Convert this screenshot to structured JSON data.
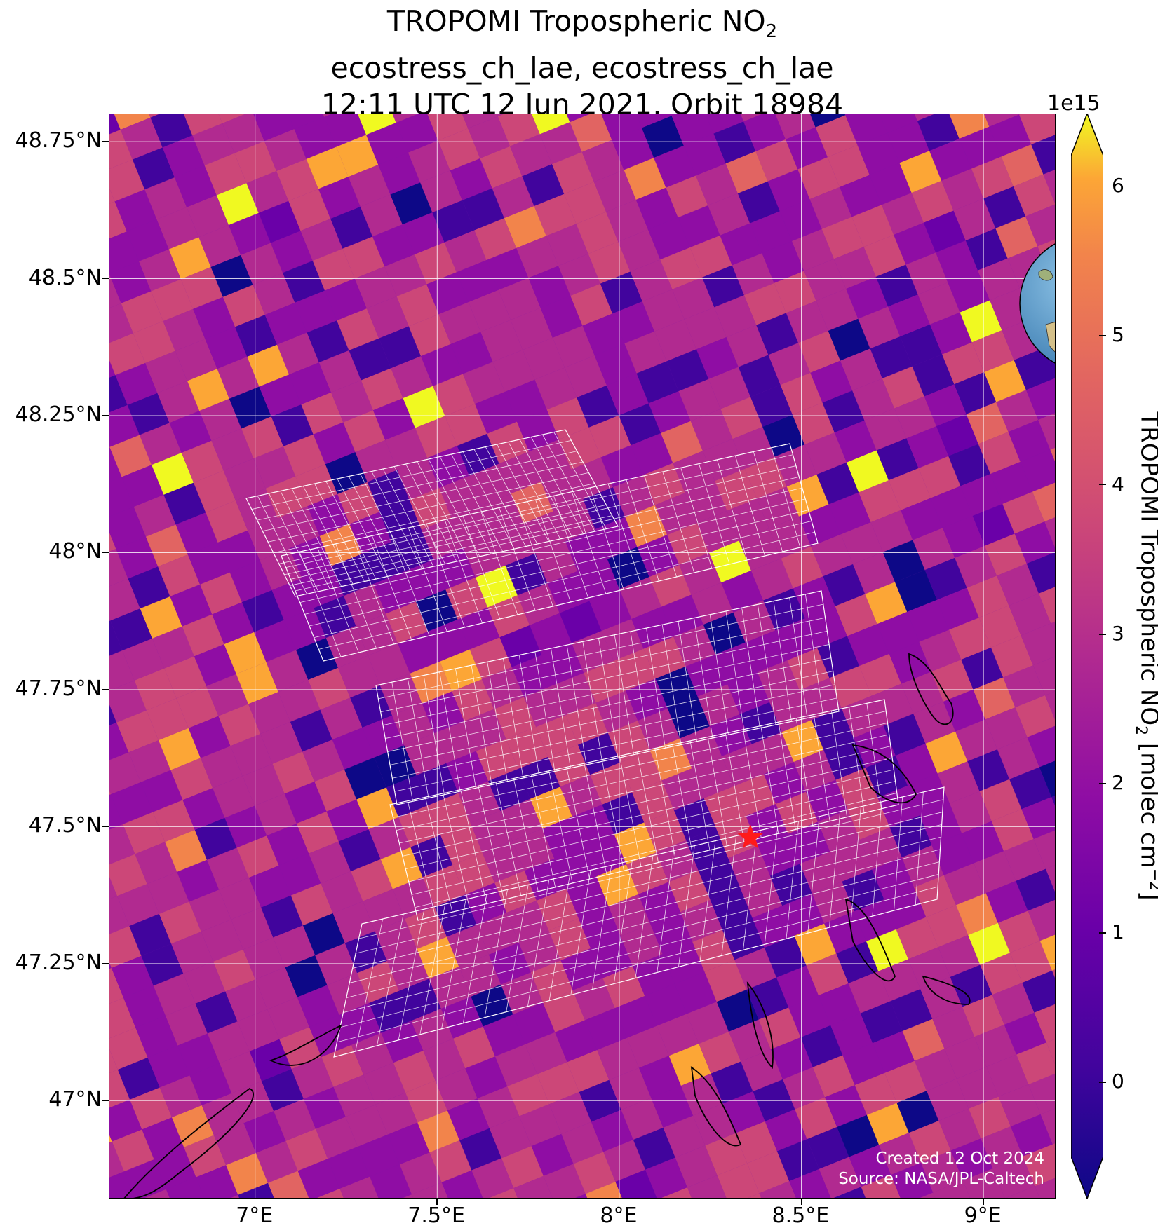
{
  "title": {
    "line1_prefix": "TROPOMI Tropospheric NO",
    "line1_sub": "2",
    "line2": "ecostress_ch_lae, ecostress_ch_lae",
    "line3": "12:11 UTC 12 Jun 2021, Orbit 18984"
  },
  "map": {
    "lon_range": [
      6.6,
      9.2
    ],
    "lat_range": [
      46.82,
      48.8
    ],
    "lat_ticks": [
      {
        "value": 48.75,
        "label": "48.75°N"
      },
      {
        "value": 48.5,
        "label": "48.5°N"
      },
      {
        "value": 48.25,
        "label": "48.25°N"
      },
      {
        "value": 48.0,
        "label": "48°N"
      },
      {
        "value": 47.75,
        "label": "47.75°N"
      },
      {
        "value": 47.5,
        "label": "47.5°N"
      },
      {
        "value": 47.25,
        "label": "47.25°N"
      },
      {
        "value": 47.0,
        "label": "47°N"
      }
    ],
    "lon_ticks": [
      {
        "value": 7.0,
        "label": "7°E"
      },
      {
        "value": 7.5,
        "label": "7.5°E"
      },
      {
        "value": 8.0,
        "label": "8°E"
      },
      {
        "value": 8.5,
        "label": "8.5°E"
      },
      {
        "value": 9.0,
        "label": "9°E"
      }
    ],
    "gridlines": true,
    "site_marker": {
      "lon": 8.36,
      "lat": 47.48,
      "color": "#ff1a1a"
    },
    "colormap": "plasma",
    "value_range": [
      -0.5,
      6.2
    ],
    "credits": {
      "created": "Created 12 Oct 2024",
      "source": "Source: NASA/JPL-Caltech"
    }
  },
  "colorbar": {
    "exponent": "1e15",
    "ticks": [
      {
        "value": 0,
        "label": "0"
      },
      {
        "value": 1,
        "label": "1"
      },
      {
        "value": 2,
        "label": "2"
      },
      {
        "value": 3,
        "label": "3"
      },
      {
        "value": 4,
        "label": "4"
      },
      {
        "value": 5,
        "label": "5"
      },
      {
        "value": 6,
        "label": "6"
      }
    ],
    "label_prefix": "TROPOMI Tropospheric NO",
    "label_sub": "2",
    "label_mid": " [molec cm",
    "label_sup": "−2",
    "label_end": "]"
  },
  "inset": {
    "icon": "globe-europe-icon",
    "marker_color": "#ff1a1a"
  }
}
